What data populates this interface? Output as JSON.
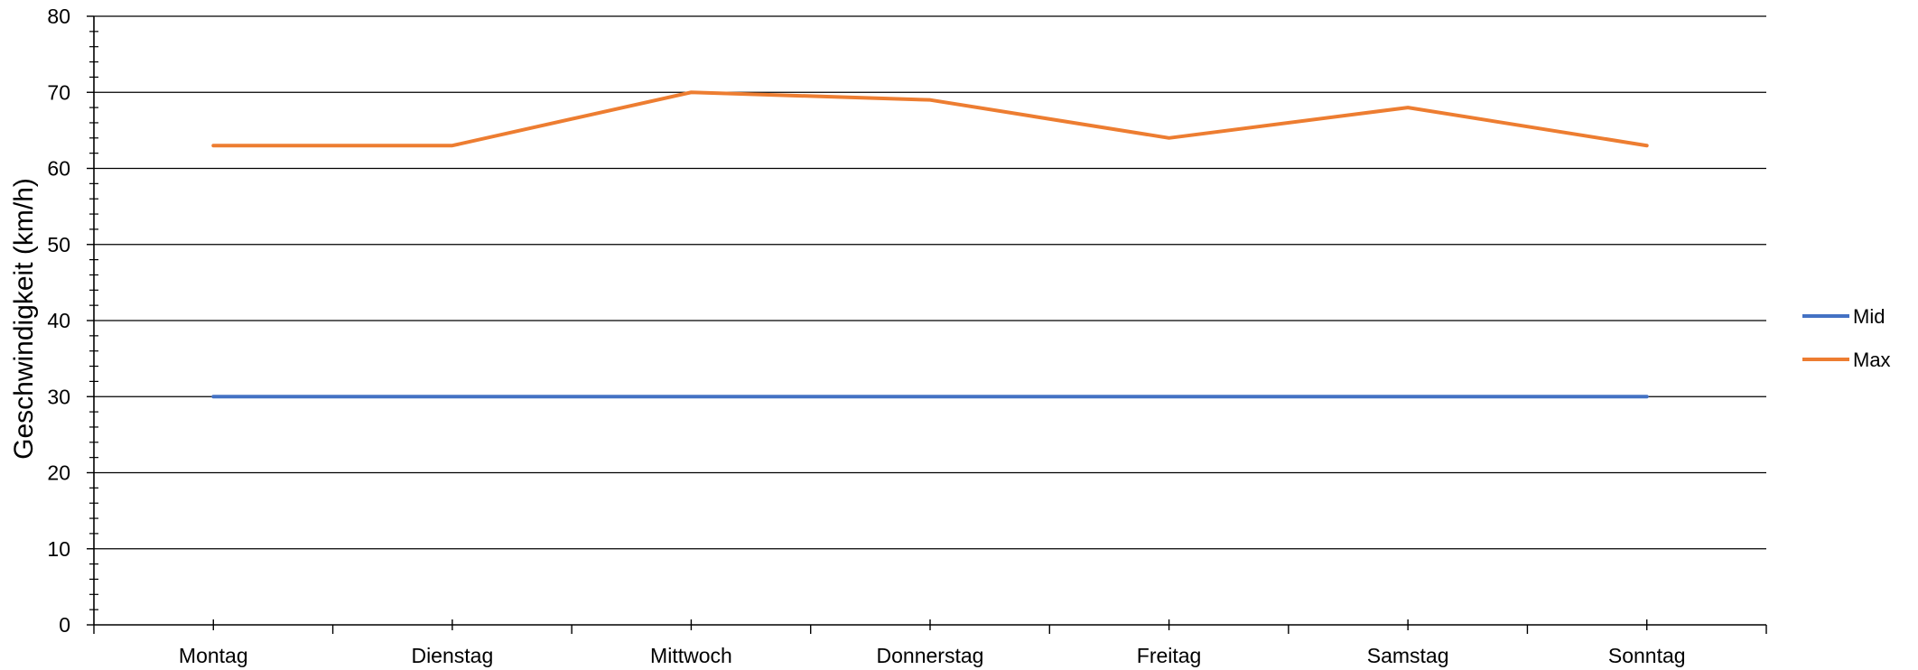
{
  "chart_data": {
    "type": "line",
    "title": "",
    "xlabel": "",
    "ylabel": "Geschwindigkeit (km/h)",
    "categories": [
      "Montag",
      "Dienstag",
      "Mittwoch",
      "Donnerstag",
      "Freitag",
      "Samstag",
      "Sonntag"
    ],
    "series": [
      {
        "name": "Mid",
        "color": "#4472C4",
        "values": [
          30,
          30,
          30,
          30,
          30,
          30,
          30
        ]
      },
      {
        "name": "Max",
        "color": "#ED7D31",
        "values": [
          63,
          63,
          70,
          69,
          64,
          68,
          63
        ]
      }
    ],
    "ylim": [
      0,
      80
    ],
    "y_major_step": 10,
    "y_minor_step": 2,
    "y_ticks": [
      "0",
      "10",
      "20",
      "30",
      "40",
      "50",
      "60",
      "70",
      "80"
    ],
    "grid": true,
    "legend_position": "right"
  }
}
